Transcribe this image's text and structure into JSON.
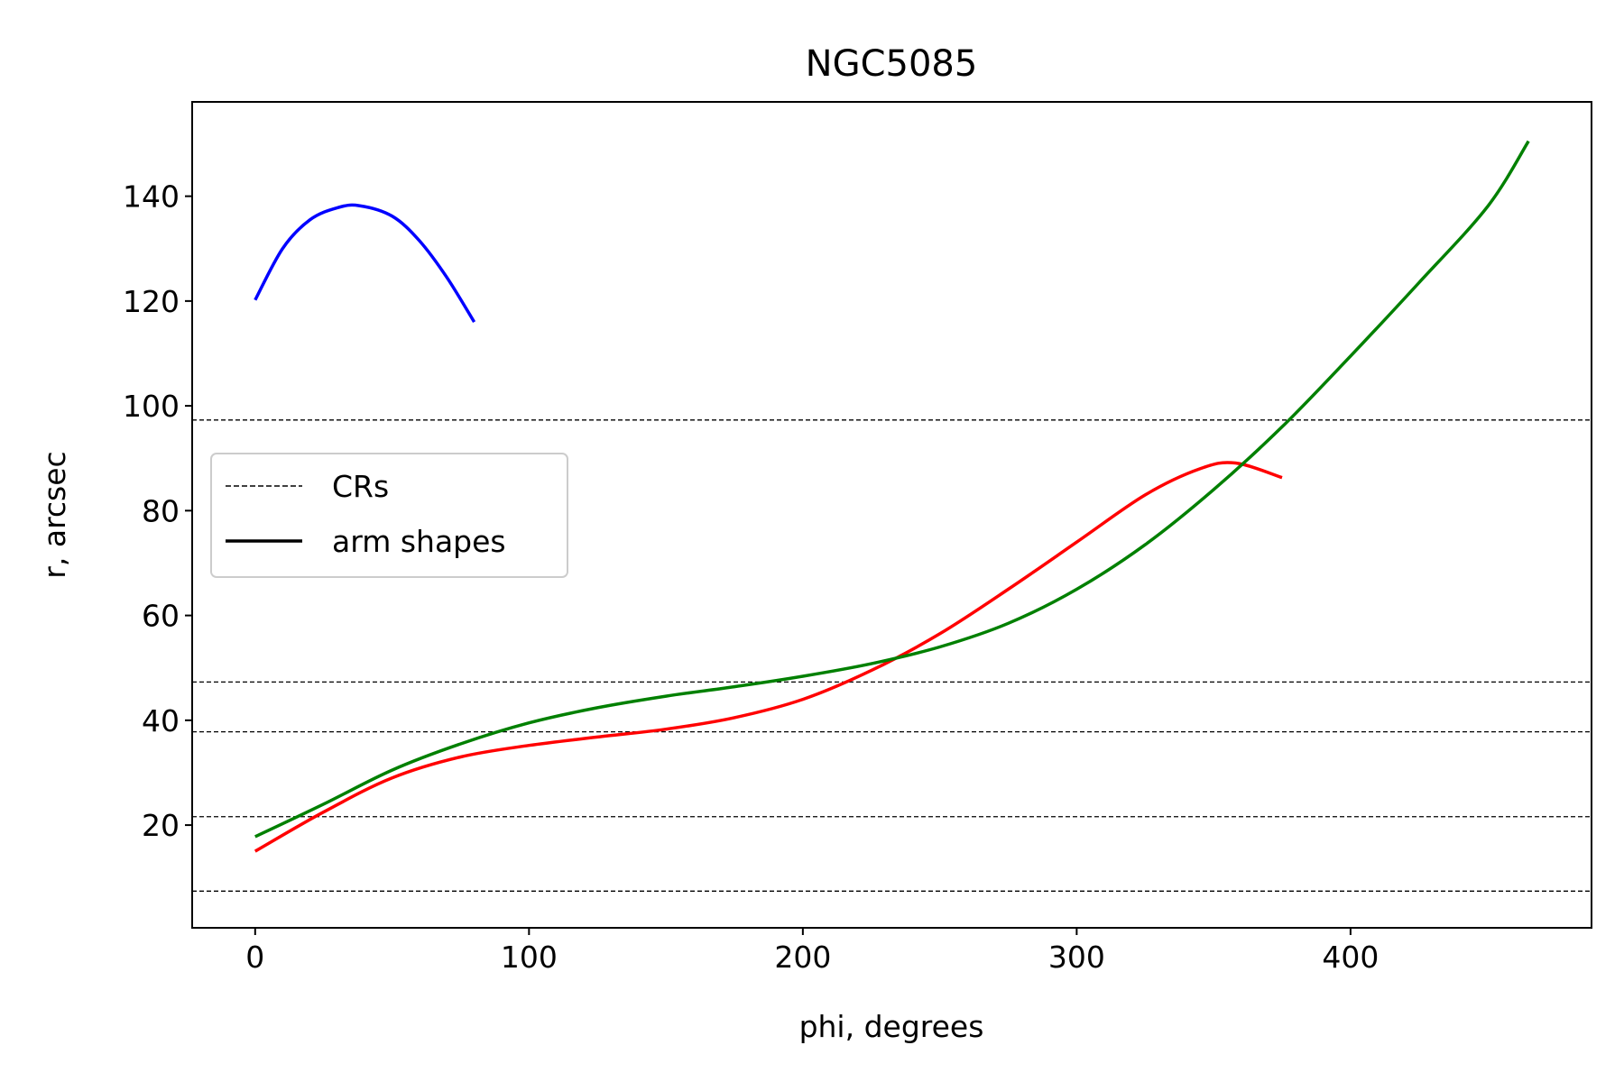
{
  "chart_data": {
    "type": "line",
    "title": "NGC5085",
    "xlabel": "phi, degrees",
    "ylabel": "r, arcsec",
    "xlim": [
      -23,
      488
    ],
    "ylim": [
      0.4,
      158
    ],
    "xticks": [
      0,
      100,
      200,
      300,
      400
    ],
    "yticks": [
      20,
      40,
      60,
      80,
      100,
      120,
      140
    ],
    "grid": false,
    "legend": {
      "placement": "center-left",
      "entries": [
        {
          "label": "CRs",
          "style": "dashed",
          "color": "#000000"
        },
        {
          "label": "arm shapes",
          "style": "solid",
          "color": "#000000"
        }
      ]
    },
    "hlines": {
      "color": "#000000",
      "style": "dashed",
      "values": [
        7.4,
        21.6,
        37.8,
        47.3,
        97.3
      ]
    },
    "series": [
      {
        "color": "#0000ff",
        "x": [
          0,
          10,
          20,
          30,
          38,
          50,
          60,
          70,
          80
        ],
        "y": [
          120.2,
          130.0,
          135.5,
          137.8,
          138.2,
          136.2,
          131.5,
          124.5,
          116.0
        ]
      },
      {
        "color": "#ff0000",
        "x": [
          0,
          25,
          50,
          75,
          100,
          125,
          150,
          175,
          200,
          225,
          250,
          275,
          300,
          325,
          345,
          358,
          375
        ],
        "y": [
          15.0,
          22.5,
          29.0,
          33.0,
          35.2,
          36.8,
          38.3,
          40.5,
          44.0,
          49.5,
          56.5,
          65.0,
          74.0,
          83.0,
          88.0,
          89.1,
          86.3
        ]
      },
      {
        "color": "#008000",
        "x": [
          0,
          25,
          50,
          75,
          100,
          125,
          150,
          175,
          200,
          225,
          250,
          275,
          300,
          325,
          350,
          375,
          400,
          425,
          450,
          465
        ],
        "y": [
          17.8,
          24.0,
          30.5,
          35.5,
          39.5,
          42.4,
          44.6,
          46.4,
          48.4,
          50.8,
          54.0,
          58.5,
          65.0,
          73.5,
          84.0,
          96.0,
          109.5,
          123.5,
          138.0,
          150.5
        ]
      }
    ]
  }
}
